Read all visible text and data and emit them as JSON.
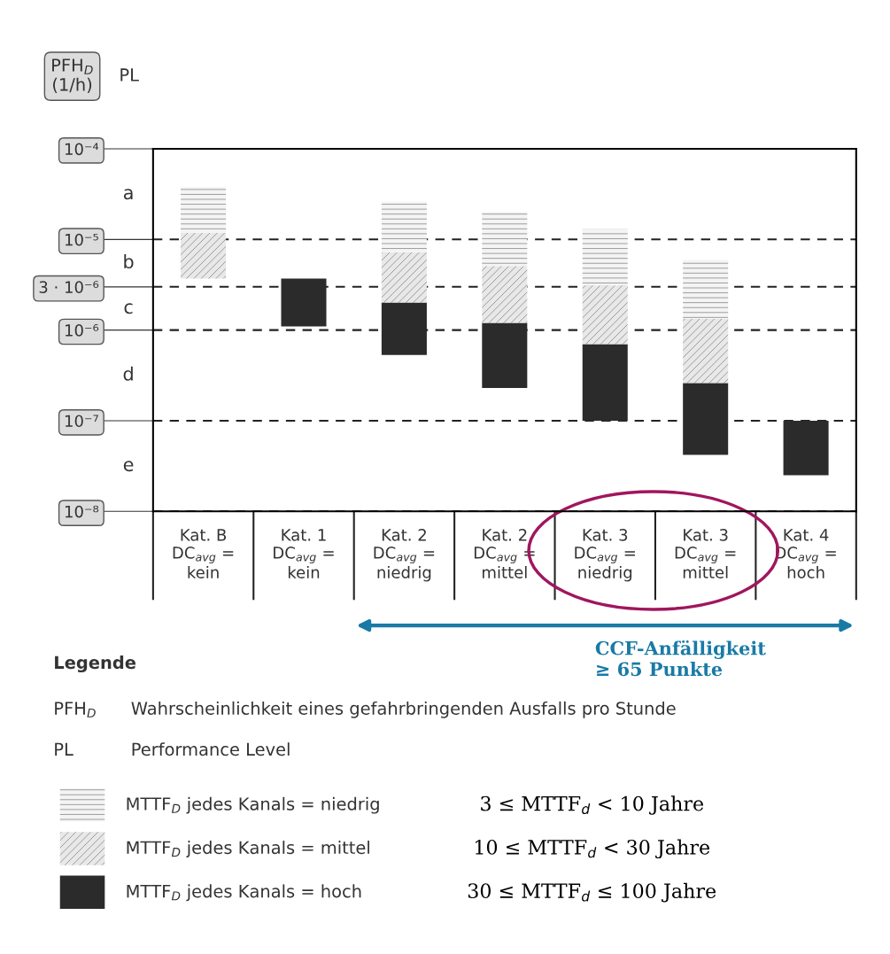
{
  "chart_data": {
    "type": "bar",
    "log": true,
    "categories": [
      "Kat. B\nDC$_{avg}$ =\nkein",
      "Kat. 1\nDC$_{avg}$ =\nkein",
      "Kat. 2\nDC$_{avg}$ =\nniedrig",
      "Kat. 2\nDC$_{avg}$ =\nmittel",
      "Kat. 3\nDC$_{avg}$ =\nniedrig",
      "Kat. 3\nDC$_{avg}$ =\nmittel",
      "Kat. 4\nDC$_{avg}$ =\nhoch"
    ],
    "series": [
      {
        "name": "MTTF$_{D}$ jedes Kanals = hoch",
        "color": "#2b2b2b",
        "base": [
          null,
          1.1e-06,
          5.3e-07,
          2.3e-07,
          1e-07,
          4.2e-08,
          2.5e-08
        ],
        "values": [
          null,
          2.6e-06,
          1.5e-06,
          9.7e-07,
          6e-07,
          2.2e-07,
          7.5e-08
        ]
      },
      {
        "name": "MTTF$_{D}$ jedes Kanals = mittel",
        "color": "#e8e8e8",
        "base": [
          3.7e-06,
          null,
          2e-06,
          1.2e-06,
          7e-07,
          2.6e-07,
          null
        ],
        "values": [
          8.1e-06,
          null,
          5.2e-06,
          3.9e-06,
          2.4e-06,
          1.07e-06,
          null
        ]
      },
      {
        "name": "MTTF$_{D}$ jedes Kanals = niedrig",
        "color": "#f4f4f4",
        "base": [
          1.18e-05,
          null,
          7.2e-06,
          5.1e-06,
          3.1e-06,
          1.33e-06,
          null
        ],
        "values": [
          2.6e-05,
          null,
          1.9e-05,
          1.5e-05,
          9.9e-06,
          4.6e-06,
          null
        ]
      }
    ],
    "ylabel": "PFH$_{D}$\n(1/h)",
    "ylim": [
      1e-08,
      0.0001
    ],
    "yticks": [
      {
        "value": 0.0001,
        "label": "10⁻⁴"
      },
      {
        "value": 1e-05,
        "label": "10⁻⁵"
      },
      {
        "value": 3e-06,
        "label": "3 · 10⁻⁶"
      },
      {
        "value": 1e-06,
        "label": "10⁻⁶"
      },
      {
        "value": 1e-07,
        "label": "10⁻⁷"
      },
      {
        "value": 1e-08,
        "label": "10⁻⁸"
      }
    ],
    "grid": "y",
    "legend": "bottom",
    "annotations": [
      "a",
      "b",
      "c",
      "d",
      "e",
      "PL",
      "CCF-Anfälligkeit\n≥ 65 Punkte",
      "Legende",
      "PFH$_{D}$",
      "Wahrscheinlichkeit eines gefahrbringenden Ausfalls pro Stunde",
      "PL",
      "Performance Level",
      "3 ≤ MTTF$_{d}$ < 10 Jahre",
      "10 ≤ MTTF$_{d}$ < 30 Jahre",
      "30 ≤ MTTF$_{d}$ ≤ 100 Jahre"
    ]
  }
}
